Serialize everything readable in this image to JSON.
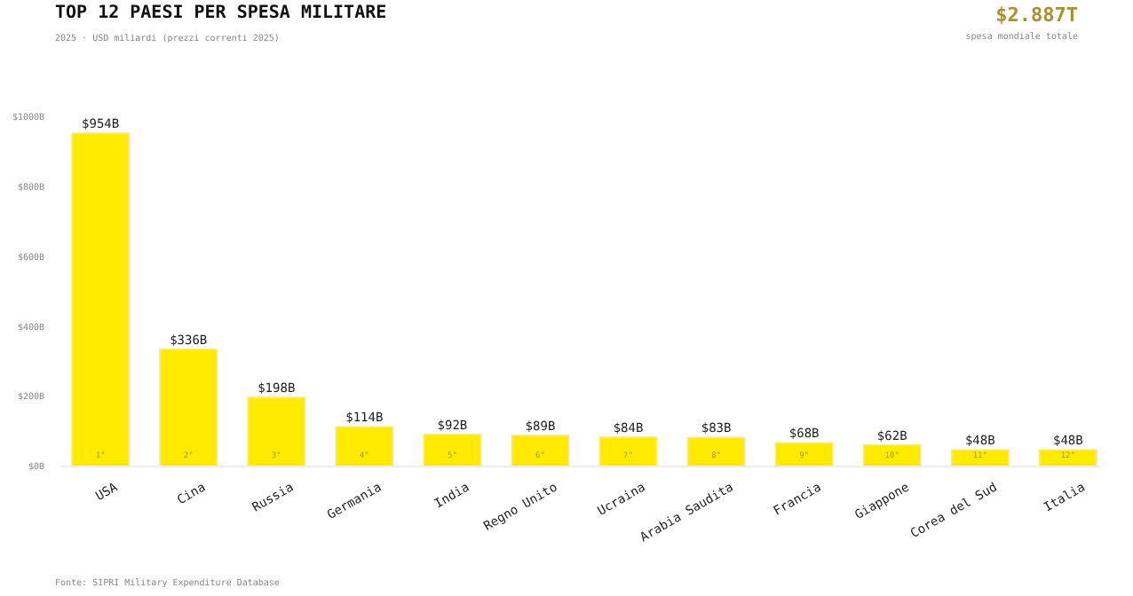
{
  "chart_data": {
    "type": "bar",
    "title": "TOP 12 PAESI PER SPESA MILITARE",
    "subtitle": "2025 · USD miliardi (prezzi correnti 2025)",
    "categories": [
      "USA",
      "Cina",
      "Russia",
      "Germania",
      "India",
      "Regno Unito",
      "Ucraina",
      "Arabia Saudita",
      "Francia",
      "Giappone",
      "Corea del Sud",
      "Italia"
    ],
    "values": [
      954,
      336,
      198,
      114,
      92,
      89,
      84,
      83,
      68,
      62,
      48,
      48
    ],
    "value_labels": [
      "$954B",
      "$336B",
      "$198B",
      "$114B",
      "$92B",
      "$89B",
      "$84B",
      "$83B",
      "$68B",
      "$62B",
      "$48B",
      "$48B"
    ],
    "color": "#ffea00",
    "ylim": [
      0,
      1000
    ],
    "yticks": [
      {
        "value": 0,
        "label": "$0B"
      },
      {
        "value": 200,
        "label": "$200B"
      },
      {
        "value": 400,
        "label": "$400B"
      },
      {
        "value": 600,
        "label": "$600B"
      },
      {
        "value": 800,
        "label": "$800B"
      },
      {
        "value": 1000,
        "label": "$1000B"
      }
    ],
    "annotations": [
      {
        "text": "1°",
        "x": "USA",
        "y": 0
      },
      {
        "text": "2°",
        "x": "Cina",
        "y": 0
      },
      {
        "text": "3°",
        "x": "Russia",
        "y": 0
      },
      {
        "text": "4°",
        "x": "Germania",
        "y": 0
      },
      {
        "text": "5°",
        "x": "India",
        "y": 0
      },
      {
        "text": "6°",
        "x": "Regno Unito",
        "y": 0
      },
      {
        "text": "7°",
        "x": "Ucraina",
        "y": 0
      },
      {
        "text": "8°",
        "x": "Arabia Saudita",
        "y": 0
      },
      {
        "text": "9°",
        "x": "Francia",
        "y": 0
      },
      {
        "text": "10°",
        "x": "Giappone",
        "y": 0
      },
      {
        "text": "11°",
        "x": "Corea del Sud",
        "y": 0
      },
      {
        "text": "12°",
        "x": "Italia",
        "y": 0
      },
      "$2.887T",
      "spesa mondiale totale",
      "Fonte: SIPRI Military Expenditure Database"
    ]
  }
}
